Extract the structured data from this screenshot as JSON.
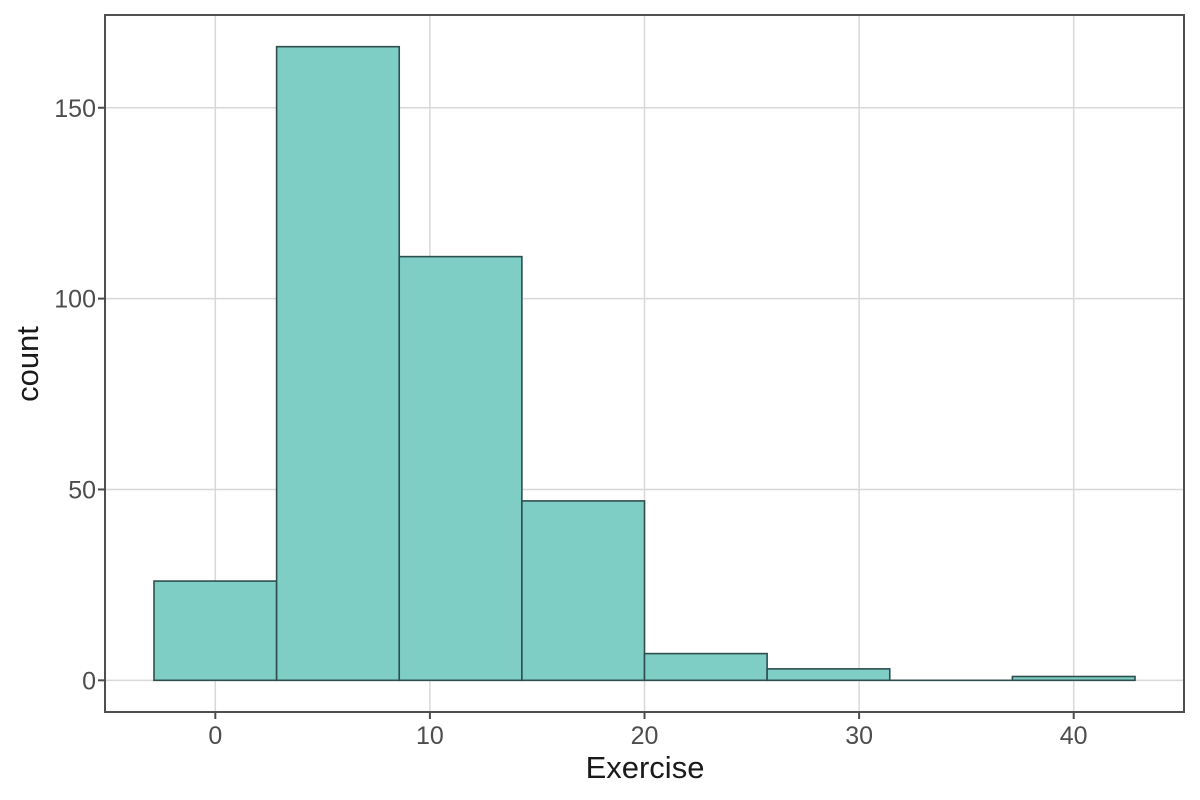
{
  "chart_data": {
    "type": "histogram",
    "title": "",
    "xlabel": "Exercise",
    "ylabel": "count",
    "bin_width": 5.714,
    "bin_edges": [
      -2.857,
      2.857,
      8.571,
      14.286,
      20.0,
      25.714,
      31.429,
      37.143,
      42.857
    ],
    "counts": [
      26,
      166,
      111,
      47,
      7,
      3,
      0,
      1
    ],
    "x_ticks": [
      0,
      10,
      20,
      30,
      40
    ],
    "y_ticks": [
      0,
      50,
      100,
      150
    ],
    "xlim": [
      -5.14,
      45.14
    ],
    "ylim": [
      -8.3,
      174.3
    ],
    "grid": "major-only",
    "legend": "none",
    "colors": {
      "bar_fill": "#7ecec6",
      "bar_stroke": "#2f4f4f",
      "grid": "#d8d8d8",
      "panel_border": "#4f4f4f",
      "tick_mark": "#4d4d4d",
      "tick_label": "#4d4d4d",
      "axis_title": "#1a1a1a",
      "background": "#ffffff"
    }
  }
}
